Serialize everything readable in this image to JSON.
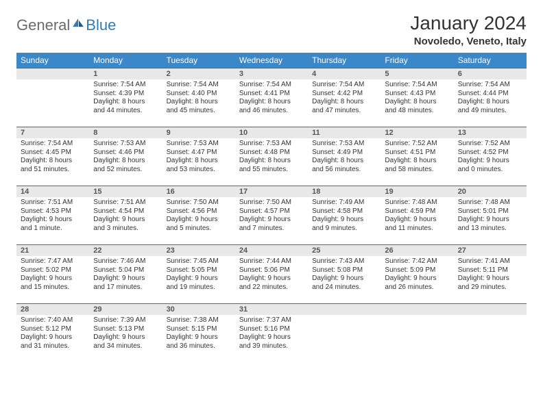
{
  "branding": {
    "word1": "General",
    "word2": "Blue",
    "icon_color": "#2f7db8"
  },
  "title": "January 2024",
  "location": "Novoledo, Veneto, Italy",
  "colors": {
    "header_bg": "#3b87c8",
    "header_text": "#ffffff",
    "daynum_bg": "#e8e8e8",
    "daynum_border": "#2f6fa8",
    "body_text": "#333333"
  },
  "day_names": [
    "Sunday",
    "Monday",
    "Tuesday",
    "Wednesday",
    "Thursday",
    "Friday",
    "Saturday"
  ],
  "weeks": [
    [
      {
        "n": "",
        "sr": "",
        "ss": "",
        "dl1": "",
        "dl2": ""
      },
      {
        "n": "1",
        "sr": "Sunrise: 7:54 AM",
        "ss": "Sunset: 4:39 PM",
        "dl1": "Daylight: 8 hours",
        "dl2": "and 44 minutes."
      },
      {
        "n": "2",
        "sr": "Sunrise: 7:54 AM",
        "ss": "Sunset: 4:40 PM",
        "dl1": "Daylight: 8 hours",
        "dl2": "and 45 minutes."
      },
      {
        "n": "3",
        "sr": "Sunrise: 7:54 AM",
        "ss": "Sunset: 4:41 PM",
        "dl1": "Daylight: 8 hours",
        "dl2": "and 46 minutes."
      },
      {
        "n": "4",
        "sr": "Sunrise: 7:54 AM",
        "ss": "Sunset: 4:42 PM",
        "dl1": "Daylight: 8 hours",
        "dl2": "and 47 minutes."
      },
      {
        "n": "5",
        "sr": "Sunrise: 7:54 AM",
        "ss": "Sunset: 4:43 PM",
        "dl1": "Daylight: 8 hours",
        "dl2": "and 48 minutes."
      },
      {
        "n": "6",
        "sr": "Sunrise: 7:54 AM",
        "ss": "Sunset: 4:44 PM",
        "dl1": "Daylight: 8 hours",
        "dl2": "and 49 minutes."
      }
    ],
    [
      {
        "n": "7",
        "sr": "Sunrise: 7:54 AM",
        "ss": "Sunset: 4:45 PM",
        "dl1": "Daylight: 8 hours",
        "dl2": "and 51 minutes."
      },
      {
        "n": "8",
        "sr": "Sunrise: 7:53 AM",
        "ss": "Sunset: 4:46 PM",
        "dl1": "Daylight: 8 hours",
        "dl2": "and 52 minutes."
      },
      {
        "n": "9",
        "sr": "Sunrise: 7:53 AM",
        "ss": "Sunset: 4:47 PM",
        "dl1": "Daylight: 8 hours",
        "dl2": "and 53 minutes."
      },
      {
        "n": "10",
        "sr": "Sunrise: 7:53 AM",
        "ss": "Sunset: 4:48 PM",
        "dl1": "Daylight: 8 hours",
        "dl2": "and 55 minutes."
      },
      {
        "n": "11",
        "sr": "Sunrise: 7:53 AM",
        "ss": "Sunset: 4:49 PM",
        "dl1": "Daylight: 8 hours",
        "dl2": "and 56 minutes."
      },
      {
        "n": "12",
        "sr": "Sunrise: 7:52 AM",
        "ss": "Sunset: 4:51 PM",
        "dl1": "Daylight: 8 hours",
        "dl2": "and 58 minutes."
      },
      {
        "n": "13",
        "sr": "Sunrise: 7:52 AM",
        "ss": "Sunset: 4:52 PM",
        "dl1": "Daylight: 9 hours",
        "dl2": "and 0 minutes."
      }
    ],
    [
      {
        "n": "14",
        "sr": "Sunrise: 7:51 AM",
        "ss": "Sunset: 4:53 PM",
        "dl1": "Daylight: 9 hours",
        "dl2": "and 1 minute."
      },
      {
        "n": "15",
        "sr": "Sunrise: 7:51 AM",
        "ss": "Sunset: 4:54 PM",
        "dl1": "Daylight: 9 hours",
        "dl2": "and 3 minutes."
      },
      {
        "n": "16",
        "sr": "Sunrise: 7:50 AM",
        "ss": "Sunset: 4:56 PM",
        "dl1": "Daylight: 9 hours",
        "dl2": "and 5 minutes."
      },
      {
        "n": "17",
        "sr": "Sunrise: 7:50 AM",
        "ss": "Sunset: 4:57 PM",
        "dl1": "Daylight: 9 hours",
        "dl2": "and 7 minutes."
      },
      {
        "n": "18",
        "sr": "Sunrise: 7:49 AM",
        "ss": "Sunset: 4:58 PM",
        "dl1": "Daylight: 9 hours",
        "dl2": "and 9 minutes."
      },
      {
        "n": "19",
        "sr": "Sunrise: 7:48 AM",
        "ss": "Sunset: 4:59 PM",
        "dl1": "Daylight: 9 hours",
        "dl2": "and 11 minutes."
      },
      {
        "n": "20",
        "sr": "Sunrise: 7:48 AM",
        "ss": "Sunset: 5:01 PM",
        "dl1": "Daylight: 9 hours",
        "dl2": "and 13 minutes."
      }
    ],
    [
      {
        "n": "21",
        "sr": "Sunrise: 7:47 AM",
        "ss": "Sunset: 5:02 PM",
        "dl1": "Daylight: 9 hours",
        "dl2": "and 15 minutes."
      },
      {
        "n": "22",
        "sr": "Sunrise: 7:46 AM",
        "ss": "Sunset: 5:04 PM",
        "dl1": "Daylight: 9 hours",
        "dl2": "and 17 minutes."
      },
      {
        "n": "23",
        "sr": "Sunrise: 7:45 AM",
        "ss": "Sunset: 5:05 PM",
        "dl1": "Daylight: 9 hours",
        "dl2": "and 19 minutes."
      },
      {
        "n": "24",
        "sr": "Sunrise: 7:44 AM",
        "ss": "Sunset: 5:06 PM",
        "dl1": "Daylight: 9 hours",
        "dl2": "and 22 minutes."
      },
      {
        "n": "25",
        "sr": "Sunrise: 7:43 AM",
        "ss": "Sunset: 5:08 PM",
        "dl1": "Daylight: 9 hours",
        "dl2": "and 24 minutes."
      },
      {
        "n": "26",
        "sr": "Sunrise: 7:42 AM",
        "ss": "Sunset: 5:09 PM",
        "dl1": "Daylight: 9 hours",
        "dl2": "and 26 minutes."
      },
      {
        "n": "27",
        "sr": "Sunrise: 7:41 AM",
        "ss": "Sunset: 5:11 PM",
        "dl1": "Daylight: 9 hours",
        "dl2": "and 29 minutes."
      }
    ],
    [
      {
        "n": "28",
        "sr": "Sunrise: 7:40 AM",
        "ss": "Sunset: 5:12 PM",
        "dl1": "Daylight: 9 hours",
        "dl2": "and 31 minutes."
      },
      {
        "n": "29",
        "sr": "Sunrise: 7:39 AM",
        "ss": "Sunset: 5:13 PM",
        "dl1": "Daylight: 9 hours",
        "dl2": "and 34 minutes."
      },
      {
        "n": "30",
        "sr": "Sunrise: 7:38 AM",
        "ss": "Sunset: 5:15 PM",
        "dl1": "Daylight: 9 hours",
        "dl2": "and 36 minutes."
      },
      {
        "n": "31",
        "sr": "Sunrise: 7:37 AM",
        "ss": "Sunset: 5:16 PM",
        "dl1": "Daylight: 9 hours",
        "dl2": "and 39 minutes."
      },
      {
        "n": "",
        "sr": "",
        "ss": "",
        "dl1": "",
        "dl2": ""
      },
      {
        "n": "",
        "sr": "",
        "ss": "",
        "dl1": "",
        "dl2": ""
      },
      {
        "n": "",
        "sr": "",
        "ss": "",
        "dl1": "",
        "dl2": ""
      }
    ]
  ]
}
